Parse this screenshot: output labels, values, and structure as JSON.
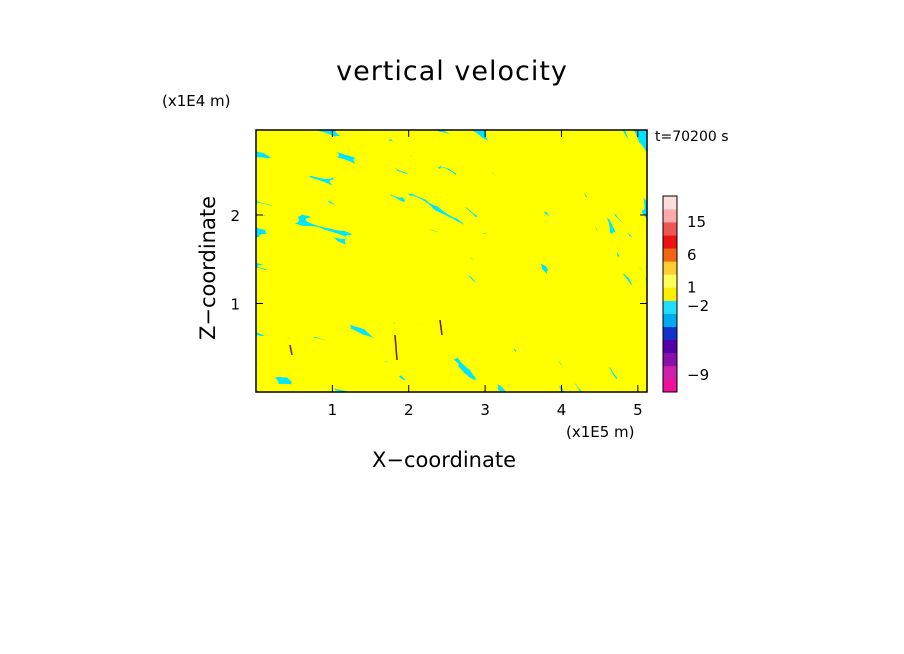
{
  "chart_data": {
    "type": "heatmap",
    "title": "vertical velocity",
    "xlabel": "X−coordinate",
    "ylabel": "Z−coordinate",
    "x_unit": "(x1E5 m)",
    "y_unit": "(x1E4 m)",
    "annotation": "t=70200 s",
    "xlim": [
      0,
      5.12
    ],
    "ylim": [
      0,
      2.96
    ],
    "x_ticks": [
      {
        "value": 1,
        "label": "1"
      },
      {
        "value": 2,
        "label": "2"
      },
      {
        "value": 3,
        "label": "3"
      },
      {
        "value": 4,
        "label": "4"
      },
      {
        "value": 5,
        "label": "5"
      }
    ],
    "y_ticks": [
      {
        "value": 1,
        "label": "1"
      },
      {
        "value": 2,
        "label": "2"
      }
    ],
    "colorbar": {
      "colors": [
        "#ee1199",
        "#cc22aa",
        "#8811aa",
        "#5500aa",
        "#1133cc",
        "#00aaee",
        "#22ddff",
        "#ffee00",
        "#ffff55",
        "#ffcc33",
        "#ee6611",
        "#ee1111",
        "#ee5555",
        "#ffaaaa",
        "#ffdddd"
      ],
      "labels": [
        {
          "label": "15",
          "index": 13
        },
        {
          "label": "6",
          "index": 10.5
        },
        {
          "label": "1",
          "index": 8
        },
        {
          "label": "−2",
          "index": 6.6
        },
        {
          "label": "−9",
          "index": 1.3
        }
      ]
    },
    "dominant_colors": {
      "negative": "#00e5ff",
      "positive": "#ffff00"
    }
  }
}
